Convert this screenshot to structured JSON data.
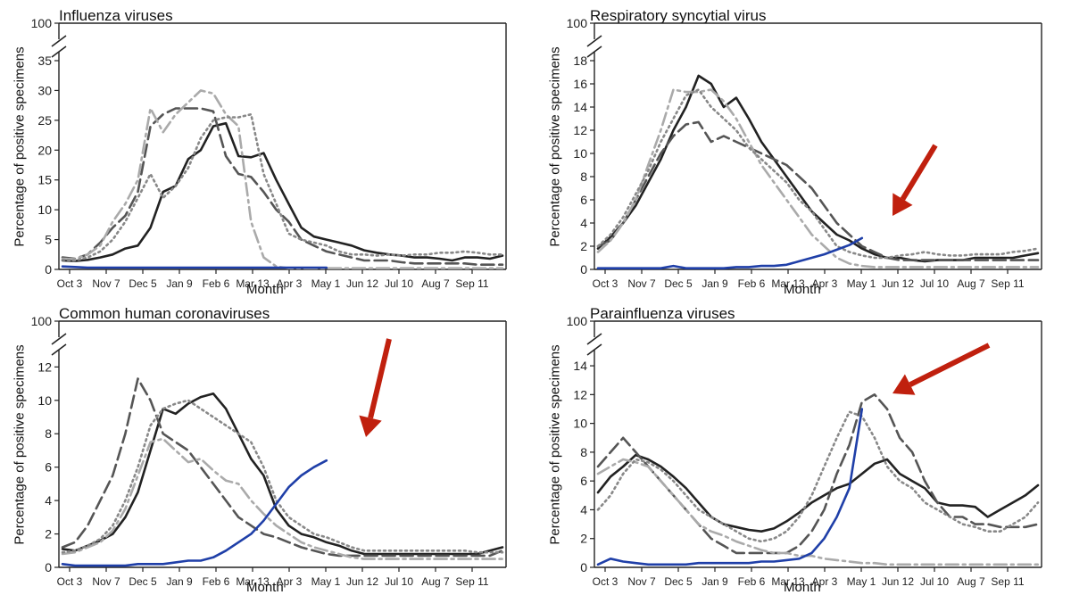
{
  "chart_data": [
    {
      "type": "line",
      "title": "Influenza viruses",
      "ylabel": "Percentage of positive specimens",
      "xlabel": "Month",
      "x_ticks": [
        "Oct 3",
        "Nov 7",
        "Dec 5",
        "Jan 9",
        "Feb 6",
        "Mar 13",
        "Apr 3",
        "May 1",
        "Jun 12",
        "Jul 10",
        "Aug 7",
        "Sep 11"
      ],
      "y_ticks": [
        0,
        5,
        10,
        15,
        20,
        25,
        30,
        35
      ],
      "y_top_label": 100,
      "ylim": [
        0,
        35
      ],
      "axis_break": true,
      "series": [
        {
          "style": "black-solid",
          "values": [
            1.5,
            1.4,
            1.6,
            2,
            2.5,
            3.5,
            4,
            7,
            13,
            14,
            18.5,
            20,
            24,
            24.5,
            19,
            18.8,
            19.5,
            15,
            11,
            7,
            5.5,
            5,
            4.5,
            4,
            3.2,
            2.8,
            2.5,
            2.3,
            2,
            2,
            1.8,
            1.5,
            2,
            2,
            1.8,
            2.3
          ]
        },
        {
          "style": "darkgray-dashed",
          "values": [
            2,
            1.8,
            2.5,
            4.5,
            7,
            9,
            13,
            24,
            26,
            27,
            27,
            27,
            26.5,
            19,
            16,
            15.5,
            13,
            10,
            8,
            5,
            4,
            3,
            2.5,
            2,
            1.5,
            1.5,
            1.5,
            1.2,
            1,
            1,
            1,
            1,
            1,
            0.8,
            0.8,
            0.8
          ]
        },
        {
          "style": "lightgray-dashdot",
          "values": [
            1.8,
            1.7,
            2.5,
            4,
            8,
            11,
            15,
            27,
            23,
            26,
            28,
            30,
            29.5,
            26,
            24,
            8,
            2,
            0.5,
            0.2,
            0.2,
            0.2,
            0.2,
            0.2,
            0.2,
            0.2,
            0.2,
            0.2,
            0.2,
            0.2,
            0.2,
            0.2,
            0.2,
            0.2,
            0.2,
            0.2,
            0.2
          ]
        },
        {
          "style": "gray-dotted",
          "values": [
            1.6,
            1.5,
            2,
            3,
            5,
            8,
            12,
            16,
            12,
            14,
            17,
            22,
            25,
            25.5,
            25.5,
            26,
            16,
            11,
            6,
            5,
            4.5,
            4,
            3,
            2.5,
            2.5,
            2.3,
            2.5,
            2.3,
            2.5,
            2.5,
            2.8,
            2.8,
            3,
            2.8,
            2.5,
            2.5
          ]
        },
        {
          "style": "blue-solid",
          "values": [
            0.5,
            0.4,
            0.3,
            0.3,
            0.3,
            0.3,
            0.3,
            0.3,
            0.3,
            0.3,
            0.3,
            0.3,
            0.3,
            0.3,
            0.3,
            0.3,
            0.3,
            0.3,
            0.3,
            0.3,
            0.3,
            0.3
          ]
        }
      ]
    },
    {
      "type": "line",
      "title": "Respiratory syncytial virus",
      "ylabel": "Percentage of positive specimens",
      "xlabel": "Month",
      "x_ticks": [
        "Oct 3",
        "Nov 7",
        "Dec 5",
        "Jan 9",
        "Feb 6",
        "Mar 13",
        "Apr 3",
        "May 1",
        "Jun 12",
        "Jul 10",
        "Aug 7",
        "Sep 11"
      ],
      "y_ticks": [
        0,
        2,
        4,
        6,
        8,
        10,
        12,
        14,
        16,
        18
      ],
      "y_top_label": 100,
      "ylim": [
        0,
        18
      ],
      "axis_break": true,
      "annotations": [
        "red-arrow"
      ],
      "series": [
        {
          "style": "black-solid",
          "values": [
            1.8,
            2.8,
            4,
            5.5,
            7.5,
            9.5,
            12,
            14,
            16.7,
            16,
            14,
            14.8,
            13,
            11,
            9.5,
            8,
            6.5,
            5,
            4,
            3,
            2.5,
            1.8,
            1.3,
            1,
            1,
            0.8,
            0.7,
            0.8,
            0.8,
            0.8,
            1,
            1,
            1,
            1,
            1.2,
            1.4
          ]
        },
        {
          "style": "darkgray-dashed",
          "values": [
            2,
            2.5,
            4,
            6,
            8,
            10,
            11.5,
            12.5,
            12.7,
            11,
            11.5,
            11,
            10.5,
            10,
            9.5,
            9,
            8,
            7,
            5.5,
            4,
            3,
            2,
            1.5,
            1,
            0.8,
            0.8,
            0.8,
            0.8,
            0.8,
            0.8,
            0.8,
            0.8,
            0.8,
            0.8,
            0.8,
            0.8
          ]
        },
        {
          "style": "lightgray-dashdot",
          "values": [
            1.5,
            2.5,
            4,
            6,
            9,
            12,
            15.5,
            15.3,
            15.3,
            15.5,
            14.5,
            13,
            11,
            9,
            7.5,
            6,
            4.5,
            3,
            2,
            1,
            0.5,
            0.3,
            0.2,
            0.2,
            0.2,
            0.2,
            0.2,
            0.2,
            0.2,
            0.2,
            0.2,
            0.2,
            0.2,
            0.2,
            0.2,
            0.2
          ]
        },
        {
          "style": "gray-dotted",
          "values": [
            2,
            3,
            4.5,
            6.5,
            8.5,
            11,
            13,
            15,
            15.5,
            14,
            13,
            12,
            10.5,
            9.5,
            8.5,
            7.5,
            6,
            5,
            3.5,
            2,
            1.5,
            1.2,
            1,
            1,
            1.2,
            1.3,
            1.5,
            1.3,
            1.2,
            1.2,
            1.3,
            1.3,
            1.3,
            1.5,
            1.6,
            1.8
          ]
        },
        {
          "style": "blue-solid",
          "values": [
            0.1,
            0.1,
            0.1,
            0.1,
            0.1,
            0.1,
            0.3,
            0.1,
            0.1,
            0.1,
            0.1,
            0.2,
            0.2,
            0.3,
            0.3,
            0.4,
            0.7,
            1,
            1.3,
            1.7,
            2.1,
            2.7
          ]
        }
      ]
    },
    {
      "type": "line",
      "title": "Common human coronaviruses",
      "ylabel": "Percentage of positive specimens",
      "xlabel": "Month",
      "x_ticks": [
        "Oct 3",
        "Nov 7",
        "Dec 5",
        "Jan 9",
        "Feb 6",
        "Mar 13",
        "Apr 3",
        "May 1",
        "Jun 12",
        "Jul 10",
        "Aug 7",
        "Sep 11"
      ],
      "y_ticks": [
        0,
        2,
        4,
        6,
        8,
        10,
        12
      ],
      "y_top_label": 100,
      "ylim": [
        0,
        12.5
      ],
      "axis_break": true,
      "annotations": [
        "red-arrow"
      ],
      "series": [
        {
          "style": "black-solid",
          "values": [
            1.1,
            1,
            1.3,
            1.6,
            2,
            3,
            4.5,
            7,
            9.5,
            9.2,
            9.8,
            10.2,
            10.4,
            9.5,
            8,
            6.5,
            5.5,
            3.5,
            2.5,
            2,
            1.8,
            1.5,
            1.3,
            1,
            0.8,
            0.8,
            0.8,
            0.8,
            0.8,
            0.8,
            0.8,
            0.8,
            0.8,
            0.8,
            1,
            1.2
          ]
        },
        {
          "style": "darkgray-dashed",
          "values": [
            1.2,
            1.5,
            2.5,
            4,
            5.5,
            8,
            11.3,
            10,
            8,
            7.5,
            7,
            6,
            5,
            4,
            3,
            2.5,
            2,
            1.8,
            1.5,
            1.2,
            1,
            0.8,
            0.7,
            0.7,
            0.7,
            0.7,
            0.7,
            0.7,
            0.7,
            0.7,
            0.7,
            0.7,
            0.7,
            0.7,
            0.7,
            1
          ]
        },
        {
          "style": "lightgray-dashdot",
          "values": [
            0.8,
            0.9,
            1.2,
            1.5,
            2.2,
            3.5,
            5.5,
            7.5,
            7.7,
            7,
            6.3,
            6.5,
            5.8,
            5.2,
            5,
            4,
            3.2,
            2.5,
            2,
            1.5,
            1.2,
            1,
            0.8,
            0.6,
            0.5,
            0.5,
            0.5,
            0.5,
            0.5,
            0.5,
            0.5,
            0.5,
            0.5,
            0.5,
            0.5,
            0.5
          ]
        },
        {
          "style": "gray-dotted",
          "values": [
            0.9,
            1,
            1.3,
            1.7,
            2.5,
            4,
            6,
            8.5,
            9.5,
            9.8,
            10,
            9.5,
            9,
            8.5,
            8,
            7.5,
            6,
            4,
            3,
            2.5,
            2,
            1.8,
            1.5,
            1.2,
            1,
            1,
            1,
            1,
            1,
            1,
            1,
            1,
            1,
            0.9,
            0.9,
            0.9
          ]
        },
        {
          "style": "blue-solid",
          "values": [
            0.2,
            0.1,
            0.1,
            0.1,
            0.1,
            0.1,
            0.2,
            0.2,
            0.2,
            0.3,
            0.4,
            0.4,
            0.6,
            1,
            1.5,
            2,
            2.8,
            3.8,
            4.8,
            5.5,
            6,
            6.4
          ]
        }
      ]
    },
    {
      "type": "line",
      "title": "Parainfluenza viruses",
      "ylabel": "Percentage of positive specimens",
      "xlabel": "Month",
      "x_ticks": [
        "Oct 3",
        "Nov 7",
        "Dec 5",
        "Jan 9",
        "Feb 6",
        "Mar 13",
        "Apr 3",
        "May 1",
        "Jun 12",
        "Jul 10",
        "Aug 7",
        "Sep 11"
      ],
      "y_ticks": [
        0,
        2,
        4,
        6,
        8,
        10,
        12,
        14
      ],
      "y_top_label": 100,
      "ylim": [
        0,
        14.5
      ],
      "axis_break": true,
      "annotations": [
        "red-arrow"
      ],
      "series": [
        {
          "style": "black-solid",
          "values": [
            5.2,
            6.3,
            7,
            7.8,
            7.5,
            7,
            6.3,
            5.5,
            4.5,
            3.5,
            3,
            2.8,
            2.6,
            2.5,
            2.7,
            3.2,
            3.8,
            4.5,
            5,
            5.5,
            5.8,
            6.5,
            7.2,
            7.5,
            6.5,
            6,
            5.5,
            4.5,
            4.3,
            4.3,
            4.2,
            3.5,
            4,
            4.5,
            5,
            5.7
          ]
        },
        {
          "style": "darkgray-dashed",
          "values": [
            7,
            8,
            9,
            8,
            7,
            6,
            5,
            4,
            3,
            2,
            1.5,
            1,
            1,
            1,
            1,
            1,
            1.5,
            2.5,
            4,
            6.5,
            8.5,
            11.5,
            12,
            11,
            9,
            8,
            6,
            4.5,
            3.5,
            3.5,
            3,
            3,
            2.8,
            2.8,
            2.8,
            3
          ]
        },
        {
          "style": "lightgray-dashdot",
          "values": [
            6.5,
            7,
            7.5,
            7.3,
            7,
            6,
            5,
            4,
            3,
            2.5,
            2.2,
            1.8,
            1.5,
            1.2,
            1,
            1,
            0.8,
            0.8,
            0.6,
            0.5,
            0.4,
            0.3,
            0.3,
            0.2,
            0.2,
            0.2,
            0.2,
            0.2,
            0.2,
            0.2,
            0.2,
            0.2,
            0.2,
            0.2,
            0.2,
            0.2
          ]
        },
        {
          "style": "gray-dotted",
          "values": [
            4,
            5,
            6.5,
            7.5,
            7.3,
            6.8,
            6,
            5,
            4,
            3.5,
            3,
            2.5,
            2,
            1.8,
            2,
            2.5,
            3.5,
            5,
            7,
            9,
            10.8,
            10.5,
            9,
            7,
            6,
            5.5,
            4.5,
            4,
            3.5,
            3,
            2.8,
            2.5,
            2.5,
            3,
            3.5,
            4.5
          ]
        },
        {
          "style": "blue-solid",
          "values": [
            0.2,
            0.6,
            0.4,
            0.3,
            0.2,
            0.2,
            0.2,
            0.2,
            0.3,
            0.3,
            0.3,
            0.3,
            0.3,
            0.4,
            0.4,
            0.5,
            0.6,
            1,
            2,
            3.5,
            5.5,
            11
          ]
        }
      ]
    }
  ]
}
